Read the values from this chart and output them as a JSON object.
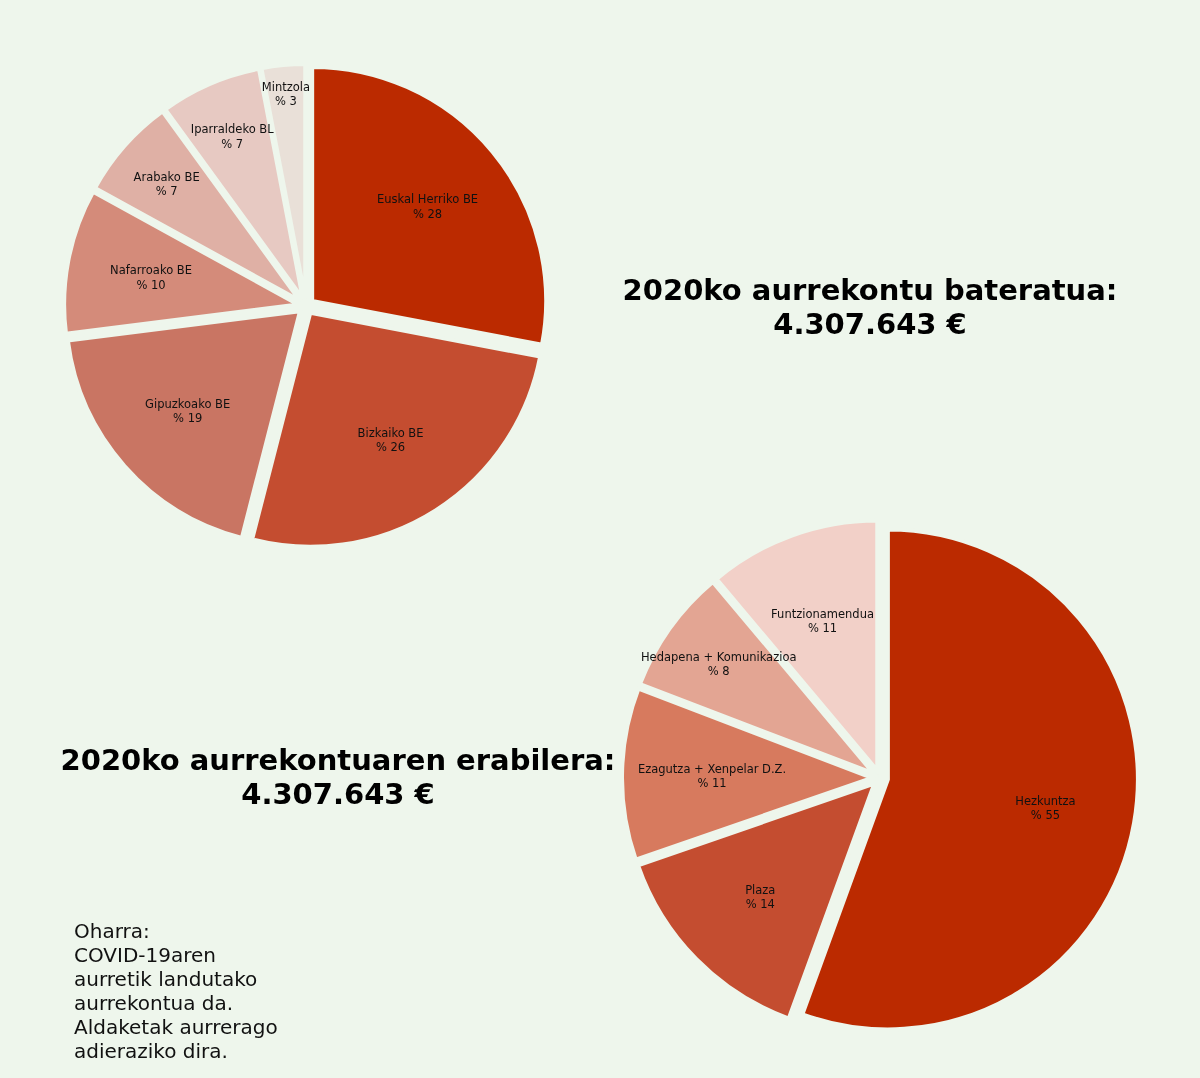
{
  "chart_data": [
    {
      "type": "pie",
      "title": "2020ko aurrekontu bateratua:",
      "subtitle": "4.307.643 €",
      "categories": [
        "Euskal Herriko BE",
        "Bizkaiko BE",
        "Gipuzkoako BE",
        "Nafarroako BE",
        "Arabako BE",
        "Iparraldeko BL",
        "Mintzola"
      ],
      "values": [
        28,
        26,
        19,
        10,
        7,
        7,
        3
      ],
      "value_labels": [
        "% 28",
        "% 26",
        "% 19",
        "% 10",
        "% 7",
        "% 7",
        "% 3"
      ],
      "colors": [
        "#bb2a00",
        "#c44d30",
        "#c97563",
        "#d48b7a",
        "#dfb0a5",
        "#e7c9c2",
        "#e9e0d8"
      ]
    },
    {
      "type": "pie",
      "title": "2020ko aurrekontuaren erabilera:",
      "subtitle": "4.307.643 €",
      "categories": [
        "Hezkuntza",
        "Plaza",
        "Ezagutza + Xenpelar D.Z.",
        "Hedapena + Komunikazioa",
        "Funtzionamendua"
      ],
      "values": [
        55,
        14,
        11,
        8,
        11
      ],
      "value_labels": [
        "% 55",
        "% 14",
        "% 11",
        "% 8",
        "% 11"
      ],
      "colors": [
        "#bb2a00",
        "#c44d30",
        "#d77a5e",
        "#e3a593",
        "#f2d0c8"
      ],
      "annotations": [
        "Oharra: COVID-19aren aurretik landutako aurrekontua da. Aldaketak aurrerago adieraziko dira."
      ]
    }
  ]
}
